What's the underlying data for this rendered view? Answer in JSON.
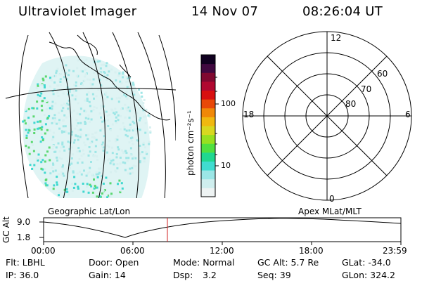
{
  "header": {
    "title": "Ultraviolet Imager",
    "date": "14 Nov 07",
    "time": "08:26:04 UT"
  },
  "colorbar": {
    "unit_label": "photon cm⁻²s⁻¹",
    "ticks": [
      "100",
      "10"
    ],
    "colors": [
      "#eef3f3",
      "#cfeeee",
      "#9be6e6",
      "#40dcd0",
      "#20d890",
      "#50e040",
      "#98e020",
      "#d8d820",
      "#f0b810",
      "#f08808",
      "#e84808",
      "#d81010",
      "#b00830",
      "#800830",
      "#400840",
      "#100020"
    ]
  },
  "polar_plot": {
    "mlt_labels": {
      "top": "12",
      "right": "6",
      "bottom": "0",
      "left": "18"
    },
    "lat_labels": [
      "60",
      "70",
      "80"
    ]
  },
  "map_label": "Geographic Lat/Lon",
  "polar_label": "Apex MLat/MLT",
  "timeline": {
    "ylabel": "GC Alt",
    "y_ticks": [
      "9.0",
      "1.8"
    ],
    "x_ticks": [
      "00:00",
      "06:00",
      "12:00",
      "18:00",
      "23:59"
    ],
    "current_marker_color": "#d02020"
  },
  "info": {
    "flt": "Flt: LBHL",
    "door": "Door: Open",
    "mode": "Mode: Normal",
    "gc_alt": "GC Alt: 5.7 Re",
    "glat": "GLat: -34.0",
    "ip": "IP: 36.0",
    "gain": "Gain: 14",
    "dsp_label": "Dsp:",
    "dsp_value": "3.2",
    "seq": "Seq: 39",
    "glon": "GLon: 324.2"
  }
}
